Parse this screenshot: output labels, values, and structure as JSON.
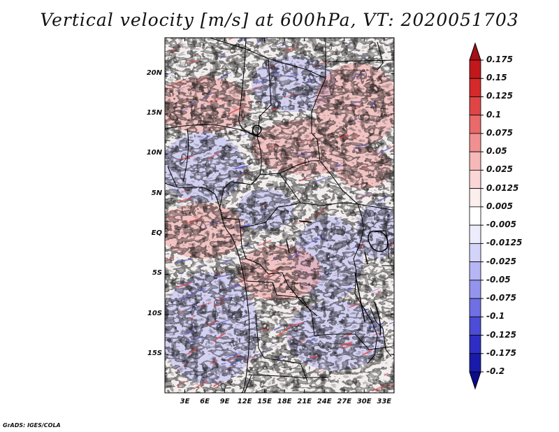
{
  "title": "Vertical velocity [m/s] at 600hPa, VT: 2020051703",
  "credit": "GrADS: IGES/COLA",
  "lat_labels": [
    "20N",
    "15N",
    "10N",
    "5N",
    "EQ",
    "5S",
    "10S",
    "15S"
  ],
  "lon_labels": [
    "3E",
    "6E",
    "9E",
    "12E",
    "15E",
    "18E",
    "21E",
    "24E",
    "27E",
    "30E",
    "33E"
  ],
  "colorbar_labels": [
    "0.175",
    "0.15",
    "0.125",
    "0.1",
    "0.075",
    "0.05",
    "0.025",
    "0.0125",
    "0.005",
    "-0.005",
    "-0.0125",
    "-0.025",
    "-0.05",
    "-0.075",
    "-0.1",
    "-0.125",
    "-0.175",
    "-0.2"
  ],
  "colorbar_colors": [
    "#a50f15",
    "#c0181c",
    "#d42a2a",
    "#e04545",
    "#e86a6a",
    "#f09090",
    "#f6b8b8",
    "#fad6d6",
    "#fdeeee",
    "#ffffff",
    "#ececfd",
    "#d4d4fa",
    "#b6b6f5",
    "#9494ee",
    "#7070e4",
    "#4c4cd6",
    "#2e2ec4",
    "#1a1aaa",
    "#0b0b8c"
  ],
  "domain": {
    "lon_range": [
      0,
      34.5
    ],
    "lat_range": [
      -19.8,
      24.5
    ]
  }
}
